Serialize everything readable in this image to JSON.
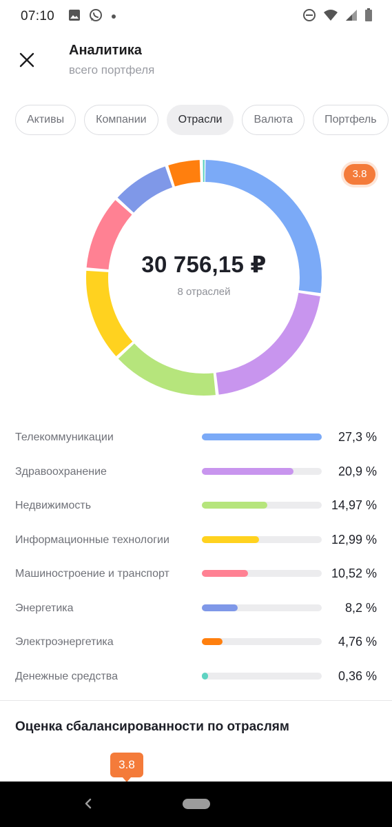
{
  "status_bar": {
    "time": "07:10",
    "icons_left": [
      "image-icon",
      "whatsapp-icon",
      "dot-icon"
    ],
    "icons_right": [
      "do-not-disturb-icon",
      "wifi-icon",
      "signal-icon",
      "battery-icon"
    ]
  },
  "header": {
    "title": "Аналитика",
    "subtitle": "всего портфеля",
    "close_icon": "close-icon"
  },
  "tabs": [
    {
      "label": "Активы",
      "active": false
    },
    {
      "label": "Компании",
      "active": false
    },
    {
      "label": "Отрасли",
      "active": true
    },
    {
      "label": "Валюта",
      "active": false
    },
    {
      "label": "Портфель",
      "active": false
    }
  ],
  "donut": {
    "total": "30 756,15 ₽",
    "caption": "8 отраслей"
  },
  "score_badge": "3.8",
  "sectors": [
    {
      "name": "Телекоммуникации",
      "percent": "27,3 %",
      "value": 27.3,
      "color": "#7baaf7"
    },
    {
      "name": "Здравоохранение",
      "percent": "20,9 %",
      "value": 20.9,
      "color": "#c895ee"
    },
    {
      "name": "Недвижимость",
      "percent": "14,97 %",
      "value": 14.97,
      "color": "#b6e57c"
    },
    {
      "name": "Информационные технологии",
      "percent": "12,99 %",
      "value": 12.99,
      "color": "#ffd21f"
    },
    {
      "name": "Машиностроение и транспорт",
      "percent": "10,52 %",
      "value": 10.52,
      "color": "#ff8193"
    },
    {
      "name": "Энергетика",
      "percent": "8,2 %",
      "value": 8.2,
      "color": "#7f98e8"
    },
    {
      "name": "Электроэнергетика",
      "percent": "4,76 %",
      "value": 4.76,
      "color": "#ff7f0e"
    },
    {
      "name": "Денежные средства",
      "percent": "0,36 %",
      "value": 0.36,
      "color": "#5fd3c2"
    }
  ],
  "section": {
    "title": "Оценка сбалансированности по отраслям",
    "score": "3.8"
  },
  "colors": {
    "accent_orange": "#f47b3a",
    "track": "#ececee"
  }
}
